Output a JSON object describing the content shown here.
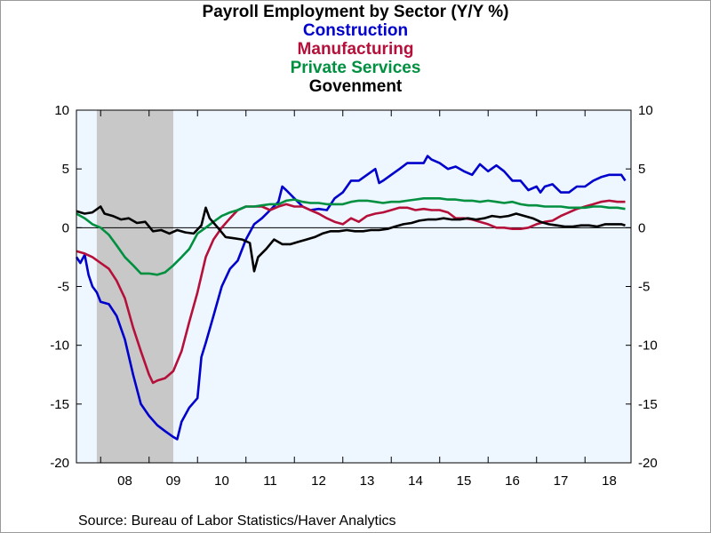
{
  "chart_data": {
    "type": "line",
    "title": "Payroll Employment by Sector (Y/Y %)",
    "ylim": [
      -20,
      10
    ],
    "y_ticks": [
      10,
      5,
      0,
      -5,
      -10,
      -15,
      -20
    ],
    "x_range": [
      2007.5,
      2018.95
    ],
    "x_tick_labels": [
      "08",
      "09",
      "10",
      "11",
      "12",
      "13",
      "14",
      "15",
      "16",
      "17",
      "18"
    ],
    "recession_shading": [
      2007.92,
      2009.5
    ],
    "zero_line": true,
    "legend_placement": "top-center, stacked under title",
    "series": [
      {
        "name": "Construction",
        "color": "#0000cc",
        "points": [
          [
            2007.5,
            -2.5
          ],
          [
            2007.58,
            -3.0
          ],
          [
            2007.67,
            -2.3
          ],
          [
            2007.75,
            -4.0
          ],
          [
            2007.83,
            -5.0
          ],
          [
            2007.92,
            -5.5
          ],
          [
            2008.0,
            -6.3
          ],
          [
            2008.17,
            -6.5
          ],
          [
            2008.33,
            -7.5
          ],
          [
            2008.5,
            -9.5
          ],
          [
            2008.67,
            -12.5
          ],
          [
            2008.83,
            -15.0
          ],
          [
            2009.0,
            -16.0
          ],
          [
            2009.17,
            -16.8
          ],
          [
            2009.33,
            -17.3
          ],
          [
            2009.5,
            -17.8
          ],
          [
            2009.58,
            -18.0
          ],
          [
            2009.67,
            -16.5
          ],
          [
            2009.83,
            -15.3
          ],
          [
            2010.0,
            -14.5
          ],
          [
            2010.08,
            -11.0
          ],
          [
            2010.17,
            -9.8
          ],
          [
            2010.33,
            -7.5
          ],
          [
            2010.5,
            -5.0
          ],
          [
            2010.67,
            -3.5
          ],
          [
            2010.83,
            -2.8
          ],
          [
            2011.0,
            -1.0
          ],
          [
            2011.17,
            0.3
          ],
          [
            2011.33,
            0.8
          ],
          [
            2011.5,
            1.5
          ],
          [
            2011.67,
            2.2
          ],
          [
            2011.75,
            3.5
          ],
          [
            2011.83,
            3.2
          ],
          [
            2012.0,
            2.5
          ],
          [
            2012.17,
            1.8
          ],
          [
            2012.33,
            1.5
          ],
          [
            2012.5,
            1.6
          ],
          [
            2012.67,
            1.5
          ],
          [
            2012.83,
            2.5
          ],
          [
            2013.0,
            3.0
          ],
          [
            2013.17,
            4.0
          ],
          [
            2013.33,
            4.0
          ],
          [
            2013.5,
            4.5
          ],
          [
            2013.67,
            5.0
          ],
          [
            2013.75,
            3.8
          ],
          [
            2013.83,
            4.0
          ],
          [
            2014.0,
            4.5
          ],
          [
            2014.17,
            5.0
          ],
          [
            2014.33,
            5.5
          ],
          [
            2014.5,
            5.5
          ],
          [
            2014.67,
            5.5
          ],
          [
            2014.75,
            6.1
          ],
          [
            2014.83,
            5.8
          ],
          [
            2015.0,
            5.5
          ],
          [
            2015.17,
            5.0
          ],
          [
            2015.33,
            5.2
          ],
          [
            2015.5,
            4.8
          ],
          [
            2015.67,
            4.5
          ],
          [
            2015.83,
            5.4
          ],
          [
            2016.0,
            4.8
          ],
          [
            2016.17,
            5.3
          ],
          [
            2016.33,
            4.8
          ],
          [
            2016.5,
            4.0
          ],
          [
            2016.67,
            4.0
          ],
          [
            2016.83,
            3.2
          ],
          [
            2017.0,
            3.5
          ],
          [
            2017.08,
            3.0
          ],
          [
            2017.17,
            3.5
          ],
          [
            2017.33,
            3.7
          ],
          [
            2017.5,
            3.0
          ],
          [
            2017.67,
            3.0
          ],
          [
            2017.83,
            3.5
          ],
          [
            2018.0,
            3.5
          ],
          [
            2018.17,
            4.0
          ],
          [
            2018.33,
            4.3
          ],
          [
            2018.5,
            4.5
          ],
          [
            2018.67,
            4.5
          ],
          [
            2018.75,
            4.5
          ],
          [
            2018.83,
            4.0
          ]
        ]
      },
      {
        "name": "Manufacturing",
        "color": "#b5103a",
        "points": [
          [
            2007.5,
            -2.0
          ],
          [
            2007.67,
            -2.2
          ],
          [
            2007.83,
            -2.5
          ],
          [
            2008.0,
            -3.0
          ],
          [
            2008.17,
            -3.5
          ],
          [
            2008.33,
            -4.5
          ],
          [
            2008.5,
            -6.0
          ],
          [
            2008.67,
            -8.5
          ],
          [
            2008.83,
            -10.5
          ],
          [
            2009.0,
            -12.5
          ],
          [
            2009.08,
            -13.2
          ],
          [
            2009.17,
            -13.0
          ],
          [
            2009.33,
            -12.8
          ],
          [
            2009.5,
            -12.2
          ],
          [
            2009.67,
            -10.5
          ],
          [
            2009.83,
            -8.0
          ],
          [
            2010.0,
            -5.5
          ],
          [
            2010.17,
            -2.5
          ],
          [
            2010.33,
            -1.0
          ],
          [
            2010.5,
            0.0
          ],
          [
            2010.67,
            0.8
          ],
          [
            2010.83,
            1.5
          ],
          [
            2011.0,
            1.8
          ],
          [
            2011.17,
            1.8
          ],
          [
            2011.33,
            1.8
          ],
          [
            2011.5,
            1.5
          ],
          [
            2011.67,
            1.8
          ],
          [
            2011.83,
            2.0
          ],
          [
            2012.0,
            1.8
          ],
          [
            2012.17,
            1.8
          ],
          [
            2012.33,
            1.5
          ],
          [
            2012.5,
            1.2
          ],
          [
            2012.67,
            0.8
          ],
          [
            2012.83,
            0.5
          ],
          [
            2013.0,
            0.3
          ],
          [
            2013.17,
            0.8
          ],
          [
            2013.33,
            0.5
          ],
          [
            2013.5,
            1.0
          ],
          [
            2013.67,
            1.2
          ],
          [
            2013.83,
            1.3
          ],
          [
            2014.0,
            1.5
          ],
          [
            2014.17,
            1.7
          ],
          [
            2014.33,
            1.7
          ],
          [
            2014.5,
            1.5
          ],
          [
            2014.67,
            1.6
          ],
          [
            2014.83,
            1.5
          ],
          [
            2015.0,
            1.5
          ],
          [
            2015.17,
            1.3
          ],
          [
            2015.33,
            0.8
          ],
          [
            2015.5,
            0.8
          ],
          [
            2015.67,
            0.7
          ],
          [
            2015.83,
            0.5
          ],
          [
            2016.0,
            0.3
          ],
          [
            2016.17,
            0.0
          ],
          [
            2016.33,
            0.0
          ],
          [
            2016.5,
            -0.1
          ],
          [
            2016.67,
            -0.1
          ],
          [
            2016.83,
            0.0
          ],
          [
            2017.0,
            0.3
          ],
          [
            2017.17,
            0.5
          ],
          [
            2017.33,
            0.6
          ],
          [
            2017.5,
            1.0
          ],
          [
            2017.67,
            1.3
          ],
          [
            2017.83,
            1.6
          ],
          [
            2018.0,
            1.8
          ],
          [
            2018.17,
            2.0
          ],
          [
            2018.33,
            2.2
          ],
          [
            2018.5,
            2.3
          ],
          [
            2018.67,
            2.2
          ],
          [
            2018.83,
            2.2
          ]
        ]
      },
      {
        "name": "Private Services",
        "color": "#009040",
        "points": [
          [
            2007.5,
            1.2
          ],
          [
            2007.67,
            0.8
          ],
          [
            2007.83,
            0.3
          ],
          [
            2008.0,
            0.0
          ],
          [
            2008.17,
            -0.6
          ],
          [
            2008.33,
            -1.5
          ],
          [
            2008.5,
            -2.5
          ],
          [
            2008.67,
            -3.2
          ],
          [
            2008.83,
            -3.9
          ],
          [
            2009.0,
            -3.9
          ],
          [
            2009.17,
            -4.0
          ],
          [
            2009.33,
            -3.8
          ],
          [
            2009.5,
            -3.2
          ],
          [
            2009.67,
            -2.5
          ],
          [
            2009.83,
            -1.8
          ],
          [
            2010.0,
            -0.5
          ],
          [
            2010.17,
            0.0
          ],
          [
            2010.33,
            0.5
          ],
          [
            2010.5,
            1.0
          ],
          [
            2010.67,
            1.3
          ],
          [
            2010.83,
            1.5
          ],
          [
            2011.0,
            1.8
          ],
          [
            2011.17,
            1.8
          ],
          [
            2011.33,
            1.9
          ],
          [
            2011.5,
            2.0
          ],
          [
            2011.67,
            2.0
          ],
          [
            2011.83,
            2.3
          ],
          [
            2012.0,
            2.4
          ],
          [
            2012.17,
            2.2
          ],
          [
            2012.33,
            2.1
          ],
          [
            2012.5,
            2.1
          ],
          [
            2012.67,
            2.0
          ],
          [
            2012.83,
            2.0
          ],
          [
            2013.0,
            2.0
          ],
          [
            2013.17,
            2.2
          ],
          [
            2013.33,
            2.3
          ],
          [
            2013.5,
            2.3
          ],
          [
            2013.67,
            2.2
          ],
          [
            2013.83,
            2.1
          ],
          [
            2014.0,
            2.2
          ],
          [
            2014.17,
            2.2
          ],
          [
            2014.33,
            2.3
          ],
          [
            2014.5,
            2.4
          ],
          [
            2014.67,
            2.5
          ],
          [
            2014.83,
            2.5
          ],
          [
            2015.0,
            2.5
          ],
          [
            2015.17,
            2.4
          ],
          [
            2015.33,
            2.4
          ],
          [
            2015.5,
            2.3
          ],
          [
            2015.67,
            2.3
          ],
          [
            2015.83,
            2.2
          ],
          [
            2016.0,
            2.3
          ],
          [
            2016.17,
            2.2
          ],
          [
            2016.33,
            2.1
          ],
          [
            2016.5,
            2.2
          ],
          [
            2016.67,
            2.0
          ],
          [
            2016.83,
            1.9
          ],
          [
            2017.0,
            1.9
          ],
          [
            2017.17,
            1.8
          ],
          [
            2017.33,
            1.8
          ],
          [
            2017.5,
            1.8
          ],
          [
            2017.67,
            1.7
          ],
          [
            2017.83,
            1.7
          ],
          [
            2018.0,
            1.7
          ],
          [
            2018.17,
            1.8
          ],
          [
            2018.33,
            1.8
          ],
          [
            2018.5,
            1.7
          ],
          [
            2018.67,
            1.7
          ],
          [
            2018.83,
            1.6
          ]
        ]
      },
      {
        "name": "Govenment",
        "color": "#000000",
        "points": [
          [
            2007.5,
            1.4
          ],
          [
            2007.67,
            1.2
          ],
          [
            2007.83,
            1.3
          ],
          [
            2008.0,
            1.8
          ],
          [
            2008.08,
            1.2
          ],
          [
            2008.25,
            1.0
          ],
          [
            2008.42,
            0.7
          ],
          [
            2008.58,
            0.8
          ],
          [
            2008.75,
            0.4
          ],
          [
            2008.92,
            0.5
          ],
          [
            2009.08,
            -0.3
          ],
          [
            2009.25,
            -0.2
          ],
          [
            2009.42,
            -0.5
          ],
          [
            2009.58,
            -0.2
          ],
          [
            2009.75,
            -0.4
          ],
          [
            2009.92,
            -0.5
          ],
          [
            2010.08,
            0.2
          ],
          [
            2010.17,
            1.7
          ],
          [
            2010.25,
            0.8
          ],
          [
            2010.42,
            0.0
          ],
          [
            2010.58,
            -0.8
          ],
          [
            2010.75,
            -0.9
          ],
          [
            2010.92,
            -1.0
          ],
          [
            2011.08,
            -1.3
          ],
          [
            2011.17,
            -3.7
          ],
          [
            2011.25,
            -2.5
          ],
          [
            2011.42,
            -1.8
          ],
          [
            2011.58,
            -1.0
          ],
          [
            2011.75,
            -1.4
          ],
          [
            2011.92,
            -1.4
          ],
          [
            2012.08,
            -1.2
          ],
          [
            2012.25,
            -1.0
          ],
          [
            2012.42,
            -0.8
          ],
          [
            2012.58,
            -0.5
          ],
          [
            2012.75,
            -0.3
          ],
          [
            2012.92,
            -0.3
          ],
          [
            2013.08,
            -0.2
          ],
          [
            2013.25,
            -0.3
          ],
          [
            2013.42,
            -0.3
          ],
          [
            2013.58,
            -0.2
          ],
          [
            2013.75,
            -0.2
          ],
          [
            2013.92,
            -0.1
          ],
          [
            2014.08,
            0.1
          ],
          [
            2014.25,
            0.3
          ],
          [
            2014.42,
            0.4
          ],
          [
            2014.58,
            0.6
          ],
          [
            2014.75,
            0.7
          ],
          [
            2014.92,
            0.7
          ],
          [
            2015.08,
            0.8
          ],
          [
            2015.25,
            0.7
          ],
          [
            2015.42,
            0.7
          ],
          [
            2015.58,
            0.8
          ],
          [
            2015.75,
            0.7
          ],
          [
            2015.92,
            0.8
          ],
          [
            2016.08,
            1.0
          ],
          [
            2016.25,
            0.9
          ],
          [
            2016.42,
            1.0
          ],
          [
            2016.58,
            1.2
          ],
          [
            2016.75,
            1.0
          ],
          [
            2016.92,
            0.8
          ],
          [
            2017.08,
            0.5
          ],
          [
            2017.25,
            0.3
          ],
          [
            2017.42,
            0.2
          ],
          [
            2017.58,
            0.1
          ],
          [
            2017.75,
            0.1
          ],
          [
            2017.92,
            0.2
          ],
          [
            2018.08,
            0.2
          ],
          [
            2018.25,
            0.1
          ],
          [
            2018.42,
            0.3
          ],
          [
            2018.58,
            0.3
          ],
          [
            2018.75,
            0.3
          ],
          [
            2018.83,
            0.2
          ]
        ]
      }
    ]
  },
  "source": "Source:  Bureau of Labor Statistics/Haver Analytics"
}
